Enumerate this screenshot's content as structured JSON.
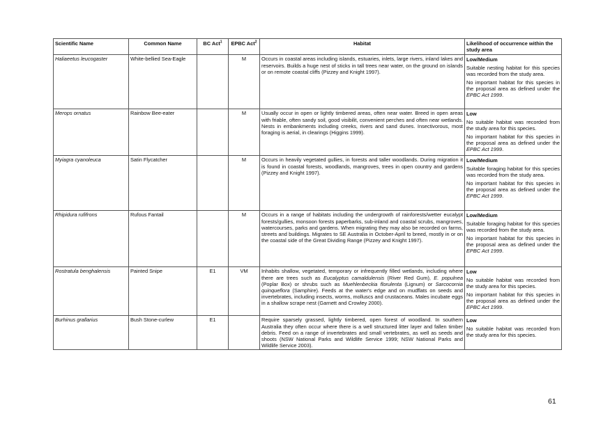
{
  "headers": {
    "scientific": "Scientific Name",
    "common": "Common Name",
    "bc": "BC Act",
    "bc_sup": "1",
    "epbc": "EPBC Act",
    "epbc_sup": "2",
    "habitat": "Habitat",
    "likelihood": "Likelihood of occurrence within the study area"
  },
  "rows": [
    {
      "scientific": "Haliaeetus leucogaster",
      "common": "White-bellied Sea-Eagle",
      "bc": "",
      "epbc": "M",
      "habitat": "Occurs in coastal areas including islands, estuaries, inlets, large rivers, inland lakes and reservoirs. Builds a huge nest of sticks in tall trees near water, on the ground on islands or on remote coastal cliffs (Pizzey and Knight 1997).",
      "likelihood": "Low/Medium",
      "notes": [
        "Suitable nesting habitat for this species was recorded from the study area."
      ],
      "important_a": "No important habitat for this species in the proposal area as defined under the ",
      "important_b": "EPBC Act 1999",
      "important_c": "."
    },
    {
      "scientific": "Merops ornatus",
      "common": "Rainbow Bee-eater",
      "bc": "",
      "epbc": "M",
      "habitat": "Usually occur in open or lightly timbered areas, often near water. Breed in open areas with friable, often sandy soil, good visibilit, convenient perches and often near wetlands. Nests in embankments including creeks, rivers and sand dunes. Insectivorous, most foraging is aerial, in clearings (Higgins 1999).",
      "likelihood": "Low",
      "notes": [
        "No suitable habitat was recorded from the study area for this species."
      ],
      "important_a": "No important habitat for this species in the proposal area as defined under the ",
      "important_b": "EPBC Act 1999",
      "important_c": "."
    },
    {
      "scientific": "Myiagra cyanoleuca",
      "common": "Satin Flycatcher",
      "bc": "",
      "epbc": "M",
      "habitat": "Occurs in heavily vegetated gullies, in forests and taller woodlands. During migration it is found in coastal forests, woodlands, mangroves, trees in open country and gardens (Pizzey and Knight 1997).",
      "likelihood": "Low/Medium",
      "notes": [
        "Suitable foraging habitat for this species was recorded from the study area."
      ],
      "important_a": "No important habitat for this species in the proposal area as defined under the ",
      "important_b": "EPBC Act 1999",
      "important_c": "."
    },
    {
      "scientific": "Rhipidura rufifrons",
      "common": "Rufous Fantail",
      "bc": "",
      "epbc": "M",
      "habitat": "Occurs in a range of habitats including the undergrowth of rainforests/wetter eucalypt forests/gullies, monsoon forests paperbarks, sub-inland and coastal scrubs, mangroves, watercourses, parks and gardens. When migrating they may also be recorded on farms, streets and buildings. Migrates to SE Australia in October-April to breed, mostly in or on the coastal side of the Great Dividing Range (Pizzey and Knight 1997).",
      "likelihood": "Low/Medium",
      "notes": [
        "Suitable foraging habitat for this species was recorded from the study area."
      ],
      "important_a": "No important habitat for this species in the proposal area as defined under the ",
      "important_b": "EPBC Act 1999",
      "important_c": "."
    },
    {
      "scientific": "Rostratula benghalensis",
      "common": "Painted Snipe",
      "bc": "E1",
      "epbc": "VM",
      "habitat_parts": {
        "a": "Inhabits shallow, vegetated, temporary or infrequently filled wetlands, including where there are trees such as ",
        "b": "Eucalyptus camaldulensis",
        "c": " (River Red Gum), ",
        "d": "E. populnea",
        "e": " (Poplar Box) or shrubs such as ",
        "f": "Muehlenbeckia florulenta",
        "g": " (Lignum) or ",
        "h": "Sarcocornia quinqueflora",
        "i": " (Samphire). Feeds at the water's edge and on mudflats on seeds and invertebrates, including insects, worms, molluscs and crustaceans. Males incubate eggs in a shallow scrape nest (Garnett and Crowley 2000)."
      },
      "likelihood": "Low",
      "notes": [
        "No suitable habitat was recorded from the study area for this species."
      ],
      "important_a": "No important habitat for this species in the proposal area as defined under the ",
      "important_b": "EPBC Act 1999",
      "important_c": "."
    },
    {
      "scientific": "Burhinus grallarius",
      "common": "Bush Stone-curlew",
      "bc": "E1",
      "epbc": "",
      "habitat": "Require sparsely grassed, lightly timbered, open forest of woodland. In southern Australia they often occur where there is a well structured litter layer and fallen timber debris. Feed on a range of invertebrates and small vertebrates, as well as seeds and shoots (NSW National Parks and Wildlife Service 1999; NSW National Parks and Wildlife Service 2003).",
      "likelihood": "Low",
      "notes": [
        "No suitable habitat was recorded from the study area for this species."
      ]
    }
  ],
  "page_number": "61"
}
